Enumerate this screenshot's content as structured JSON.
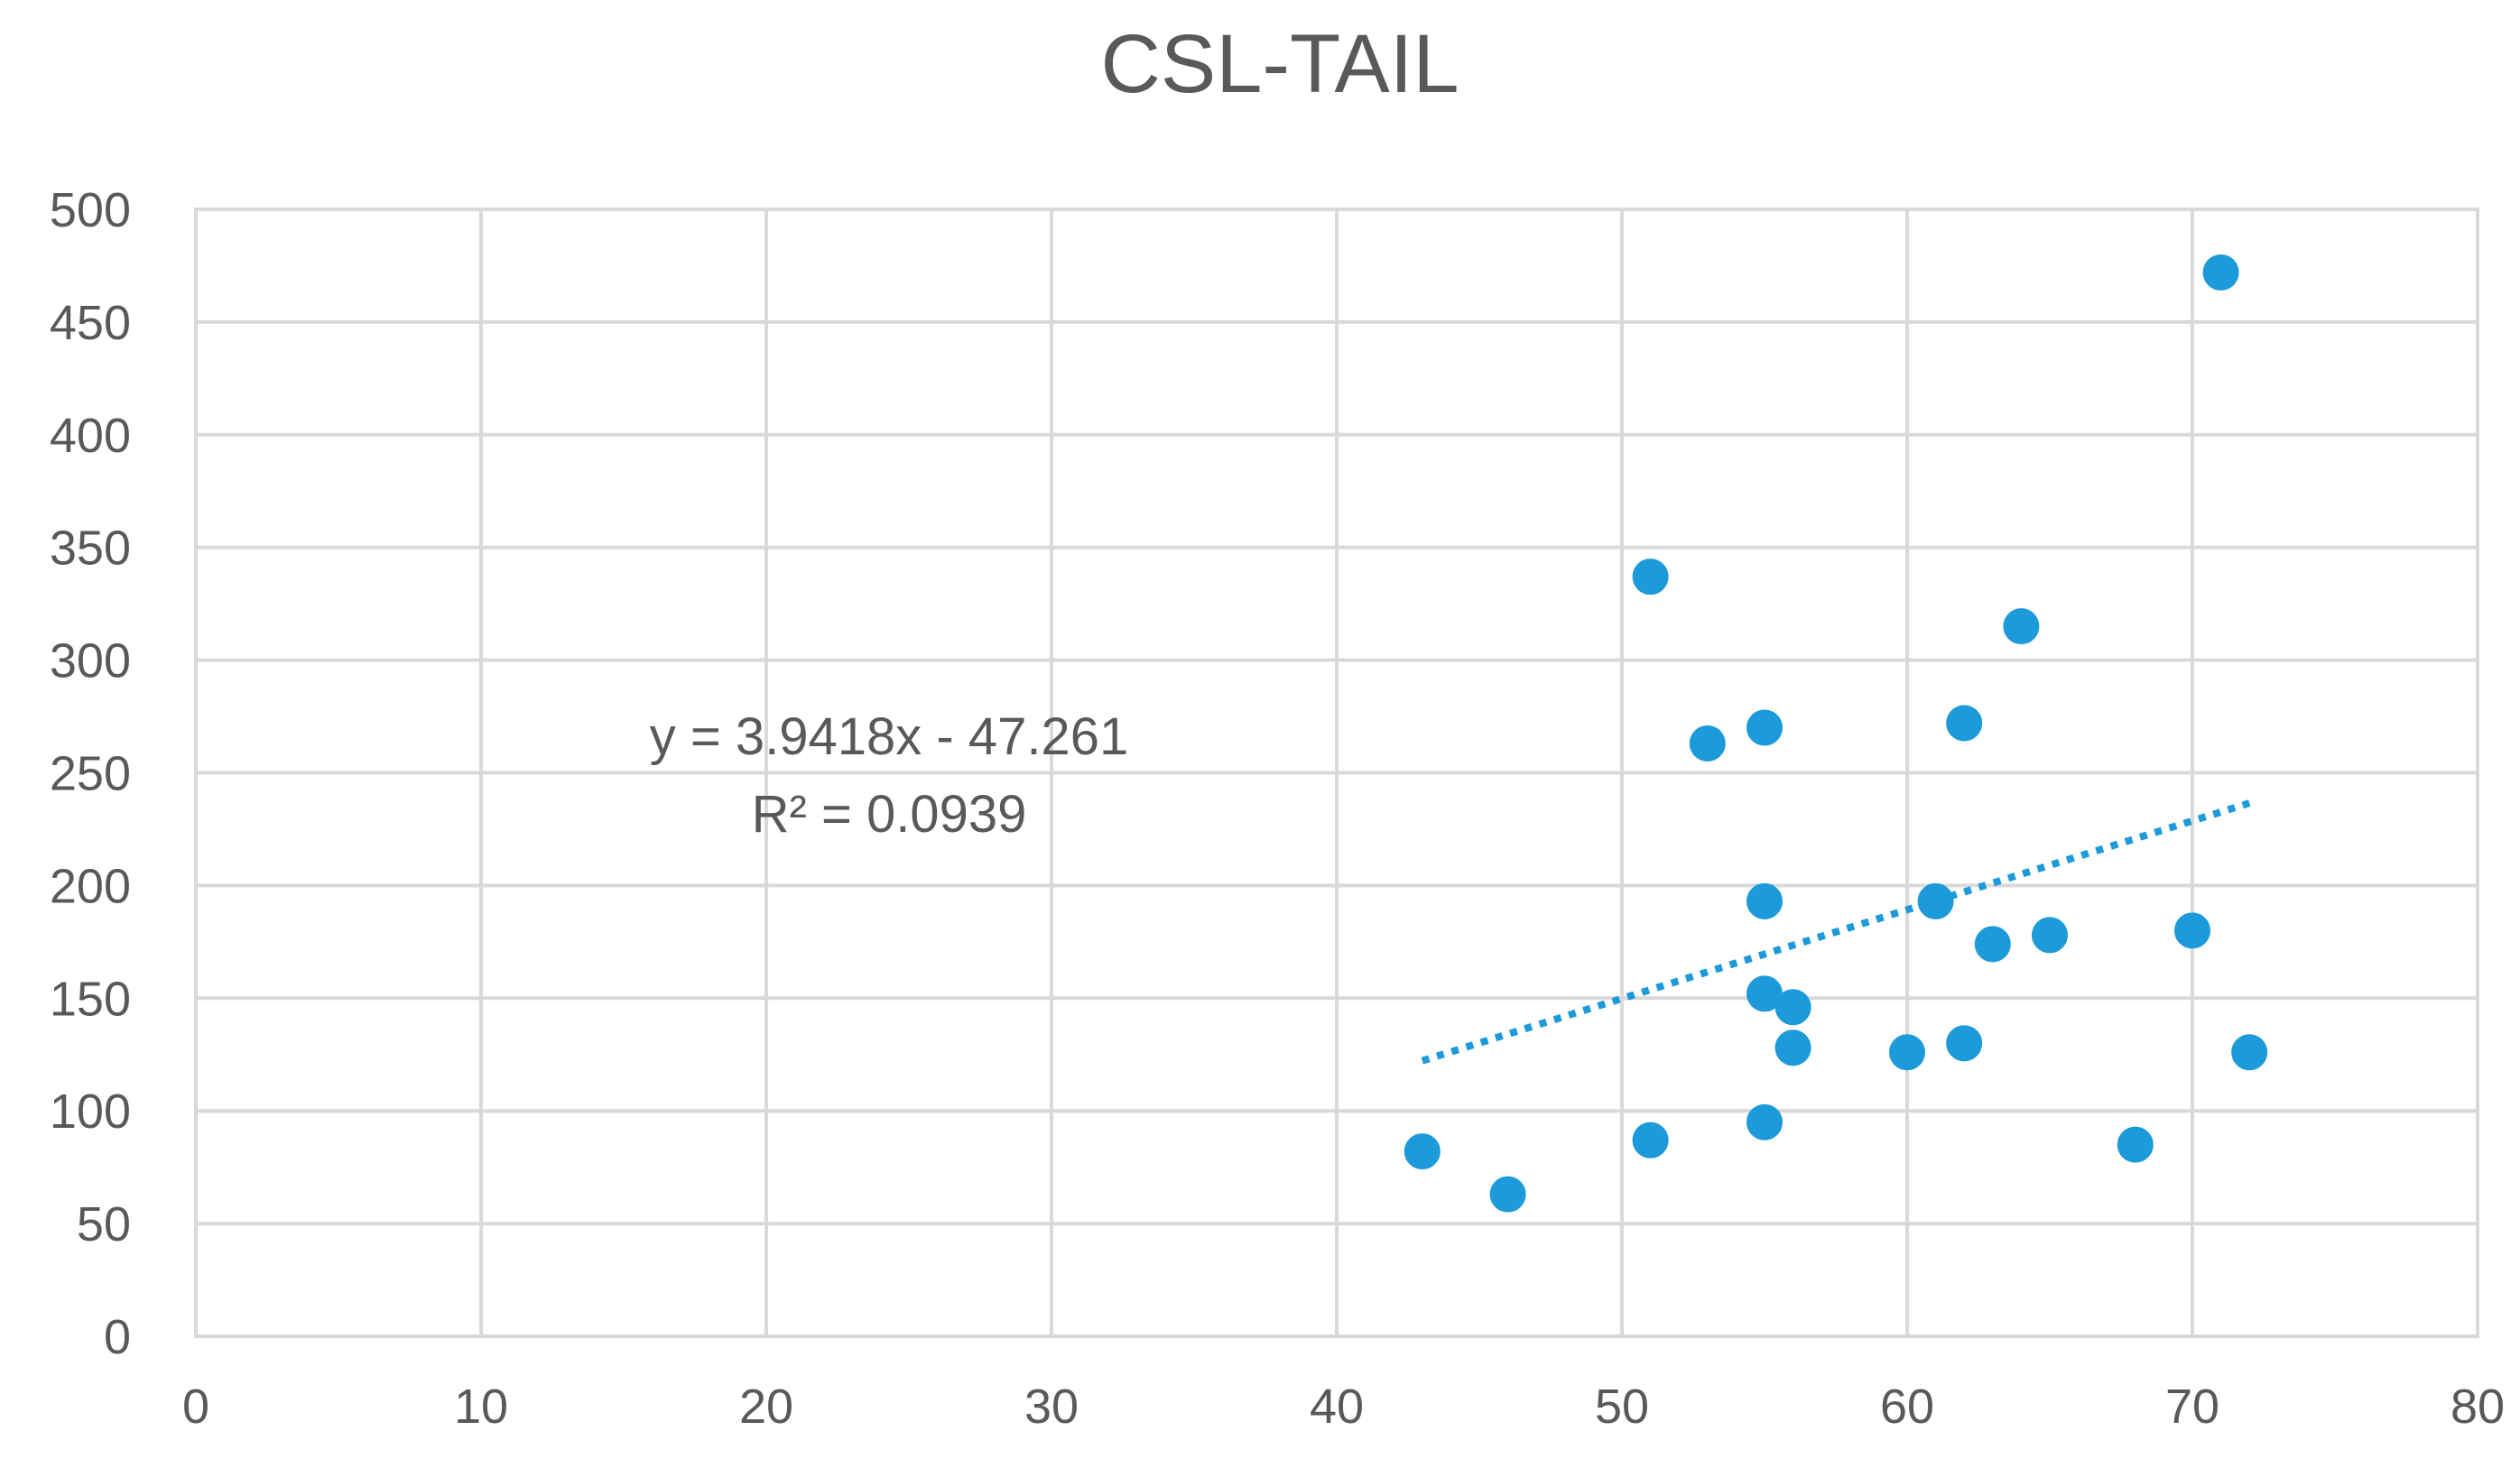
{
  "chart_data": {
    "type": "scatter",
    "title": "CSL-TAIL",
    "xlabel": "",
    "ylabel": "",
    "xlim": [
      0,
      80
    ],
    "ylim": [
      0,
      500
    ],
    "x_ticks": [
      0,
      10,
      20,
      30,
      40,
      50,
      60,
      70,
      80
    ],
    "y_ticks": [
      0,
      50,
      100,
      150,
      200,
      250,
      300,
      350,
      400,
      450,
      500
    ],
    "grid": true,
    "legend": "none",
    "series": [
      {
        "name": "CSL-TAIL",
        "color": "#1c9ad9",
        "points": [
          {
            "x": 43,
            "y": 82
          },
          {
            "x": 46,
            "y": 63
          },
          {
            "x": 51,
            "y": 87
          },
          {
            "x": 51,
            "y": 337
          },
          {
            "x": 53,
            "y": 263
          },
          {
            "x": 55,
            "y": 270
          },
          {
            "x": 55,
            "y": 193
          },
          {
            "x": 55,
            "y": 152
          },
          {
            "x": 55,
            "y": 95
          },
          {
            "x": 56,
            "y": 146
          },
          {
            "x": 56,
            "y": 128
          },
          {
            "x": 60,
            "y": 126
          },
          {
            "x": 61,
            "y": 193
          },
          {
            "x": 62,
            "y": 272
          },
          {
            "x": 62,
            "y": 130
          },
          {
            "x": 63,
            "y": 174
          },
          {
            "x": 64,
            "y": 315
          },
          {
            "x": 65,
            "y": 178
          },
          {
            "x": 68,
            "y": 85
          },
          {
            "x": 70,
            "y": 180
          },
          {
            "x": 71,
            "y": 472
          },
          {
            "x": 72,
            "y": 126
          }
        ]
      }
    ],
    "trendline": {
      "type": "linear",
      "slope": 3.9418,
      "intercept": -47.261,
      "x_range": [
        43,
        72
      ],
      "color": "#1c9ad9",
      "style": "dotted",
      "equation_label": "y = 3.9418x - 47.261",
      "r_squared_label": "R² = 0.0939"
    }
  }
}
